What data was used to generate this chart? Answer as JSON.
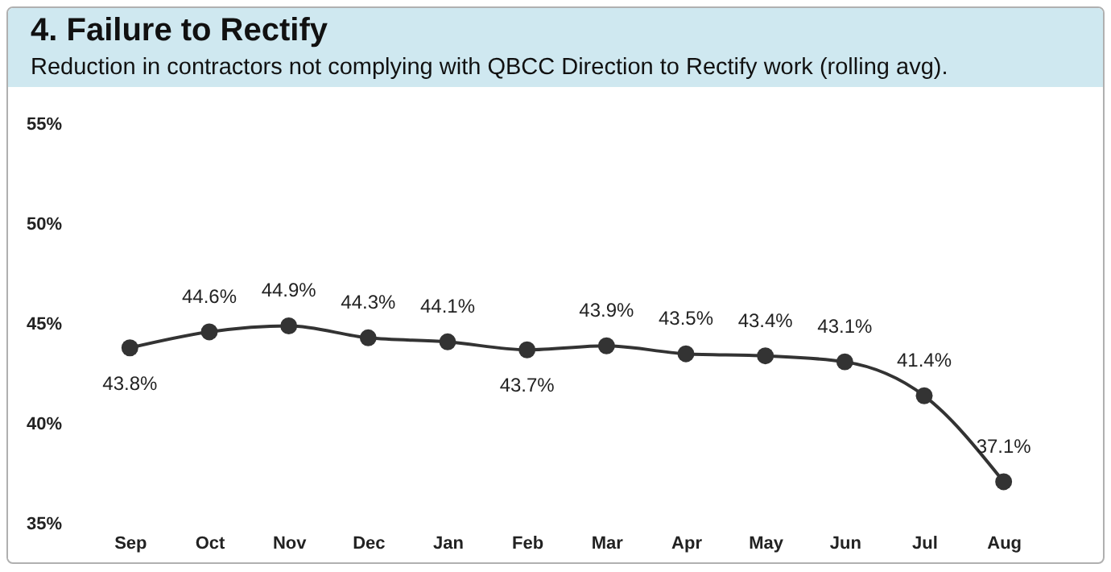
{
  "chart_data": {
    "type": "line",
    "title": "4. Failure to Rectify",
    "subtitle": "Reduction in contractors not complying with QBCC Direction to Rectify work (rolling avg).",
    "categories": [
      "Sep",
      "Oct",
      "Nov",
      "Dec",
      "Jan",
      "Feb",
      "Mar",
      "Apr",
      "May",
      "Jun",
      "Jul",
      "Aug"
    ],
    "series": [
      {
        "color": "#333333",
        "values": [
          43.8,
          44.6,
          44.9,
          44.3,
          44.1,
          43.7,
          43.9,
          43.5,
          43.4,
          43.1,
          41.4,
          37.1
        ],
        "value_labels": [
          "43.8%",
          "44.6%",
          "44.9%",
          "44.3%",
          "44.1%",
          "43.7%",
          "43.9%",
          "43.5%",
          "43.4%",
          "43.1%",
          "41.4%",
          "37.1%"
        ]
      }
    ],
    "ylim": [
      35,
      55
    ],
    "yticks": [
      {
        "value": 35,
        "label": "35%"
      },
      {
        "value": 40,
        "label": "40%"
      },
      {
        "value": 45,
        "label": "45%"
      },
      {
        "value": 50,
        "label": "50%"
      },
      {
        "value": 55,
        "label": "55%"
      }
    ],
    "grid": false,
    "legend": false,
    "marker": "circle",
    "line_style": "solid"
  }
}
